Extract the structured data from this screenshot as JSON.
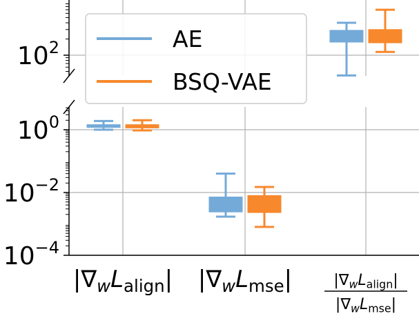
{
  "chart_data": {
    "type": "box",
    "scale": "log",
    "broken_axis": true,
    "grid": true,
    "legend": {
      "position": "upper-left",
      "entries": [
        "AE",
        "BSQ-VAE"
      ]
    },
    "colors": {
      "AE": "#74aad8",
      "BSQ-VAE": "#f7882c"
    },
    "categories": [
      {
        "label_main": "|∇",
        "label_sub": "w",
        "label_var": "L",
        "label_subscript": "align",
        "label_end": "|"
      },
      {
        "label_main": "|∇",
        "label_sub": "w",
        "label_var": "L",
        "label_subscript": "mse",
        "label_end": "|"
      },
      {
        "fraction": true,
        "numerator": {
          "label_main": "|∇",
          "label_sub": "w",
          "label_var": "L",
          "label_subscript": "align",
          "label_end": "|"
        },
        "denominator": {
          "label_main": "|∇",
          "label_sub": "w",
          "label_var": "L",
          "label_subscript": "mse",
          "label_end": "|"
        }
      }
    ],
    "upper_panel": {
      "ylim": [
        30,
        1000
      ],
      "yticks": [
        {
          "value": 100,
          "base": "10",
          "exp": "2"
        }
      ]
    },
    "lower_panel": {
      "ylim": [
        0.0001,
        3
      ],
      "yticks": [
        {
          "value": 1,
          "base": "10",
          "exp": "0"
        },
        {
          "value": 0.01,
          "base": "10",
          "exp": "−2"
        },
        {
          "value": 0.0001,
          "base": "10",
          "exp": "−4"
        }
      ]
    },
    "series": [
      {
        "name": "AE",
        "boxes": [
          {
            "min": 1.0,
            "q1": 1.18,
            "median": 1.3,
            "q3": 1.45,
            "max": 1.9
          },
          {
            "min": 0.0017,
            "q1": 0.0024,
            "median": 0.0033,
            "q3": 0.0072,
            "max": 0.04
          },
          {
            "min": 42,
            "q1": 175,
            "median": 210,
            "q3": 290,
            "max": 400
          }
        ]
      },
      {
        "name": "BSQ-VAE",
        "boxes": [
          {
            "min": 0.95,
            "q1": 1.14,
            "median": 1.25,
            "q3": 1.45,
            "max": 2.0
          },
          {
            "min": 0.0008,
            "q1": 0.0023,
            "median": 0.0045,
            "q3": 0.008,
            "max": 0.015
          },
          {
            "min": 115,
            "q1": 170,
            "median": 240,
            "q3": 300,
            "max": 700
          }
        ]
      }
    ]
  }
}
